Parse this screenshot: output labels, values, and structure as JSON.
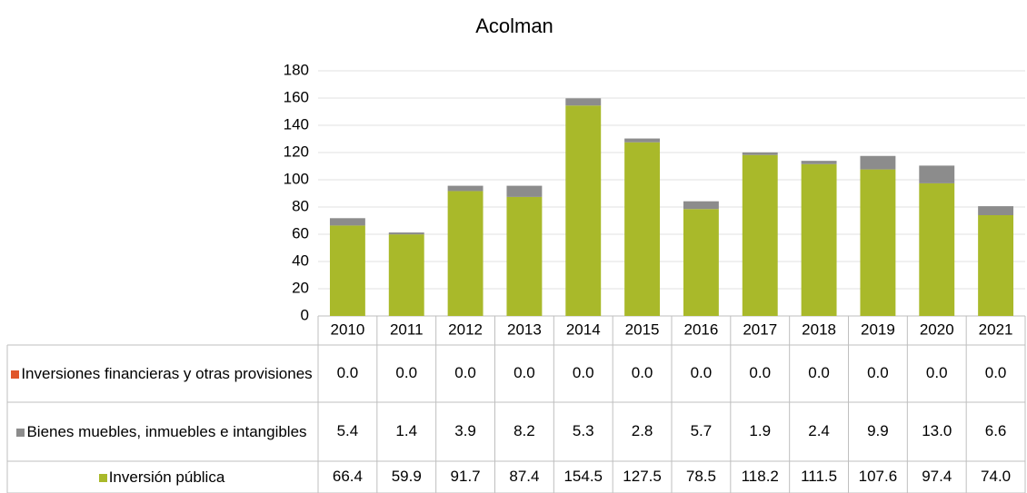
{
  "chart_data": {
    "type": "stacked_bar",
    "title": "Acolman",
    "categories": [
      "2010",
      "2011",
      "2012",
      "2013",
      "2014",
      "2015",
      "2016",
      "2017",
      "2018",
      "2019",
      "2020",
      "2021"
    ],
    "series": [
      {
        "name": "Inversiones financieras y otras provisiones",
        "color": "#e0562a",
        "values": [
          0,
          0,
          0,
          0,
          0,
          0,
          0,
          0,
          0,
          0,
          0,
          0
        ],
        "value_labels": [
          "0.0",
          "0.0",
          "0.0",
          "0.0",
          "0.0",
          "0.0",
          "0.0",
          "0.0",
          "0.0",
          "0.0",
          "0.0",
          "0.0"
        ]
      },
      {
        "name": "Bienes muebles, inmuebles e intangibles",
        "color": "#8c8c8c",
        "values": [
          5.4,
          1.4,
          3.9,
          8.2,
          5.3,
          2.8,
          5.7,
          1.9,
          2.4,
          9.9,
          13.0,
          6.6
        ],
        "value_labels": [
          "5.4",
          "1.4",
          "3.9",
          "8.2",
          "5.3",
          "2.8",
          "5.7",
          "1.9",
          "2.4",
          "9.9",
          "13.0",
          "6.6"
        ]
      },
      {
        "name": "Inversión pública",
        "color": "#a9b92a",
        "values": [
          66.4,
          59.9,
          91.7,
          87.4,
          154.5,
          127.5,
          78.5,
          118.2,
          111.5,
          107.6,
          97.4,
          74.0
        ],
        "value_labels": [
          "66.4",
          "59.9",
          "91.7",
          "87.4",
          "154.5",
          "127.5",
          "78.5",
          "118.2",
          "111.5",
          "107.6",
          "97.4",
          "74.0"
        ]
      }
    ],
    "ylim": [
      0,
      180
    ],
    "yticks": [
      0,
      20,
      40,
      60,
      80,
      100,
      120,
      140,
      160,
      180
    ],
    "grid": true
  }
}
